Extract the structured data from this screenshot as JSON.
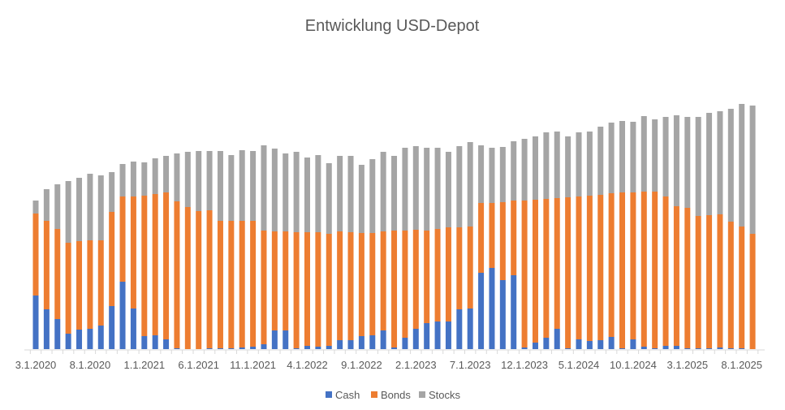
{
  "chart_data": {
    "type": "bar",
    "stacked": true,
    "title": "Entwicklung USD-Depot",
    "xlabel": "",
    "ylabel": "",
    "y_axis_visible": false,
    "grid": false,
    "legend_position": "bottom",
    "tick_labels": [
      "3.1.2020",
      "8.1.2020",
      "1.1.2021",
      "6.1.2021",
      "11.1.2021",
      "4.1.2022",
      "9.1.2022",
      "2.1.2023",
      "7.1.2023",
      "12.1.2023",
      "5.1.2024",
      "10.1.2024",
      "3.1.2025",
      "8.1.2025"
    ],
    "categories": [
      "3.1.2020",
      "4.1.2020",
      "5.1.2020",
      "6.1.2020",
      "7.1.2020",
      "8.1.2020",
      "9.1.2020",
      "10.1.2020",
      "11.1.2020",
      "12.1.2020",
      "1.1.2021",
      "2.1.2021",
      "3.1.2021",
      "4.1.2021",
      "5.1.2021",
      "6.1.2021",
      "7.1.2021",
      "8.1.2021",
      "9.1.2021",
      "10.1.2021",
      "11.1.2021",
      "12.1.2021",
      "1.1.2022",
      "2.1.2022",
      "3.1.2022",
      "4.1.2022",
      "5.1.2022",
      "6.1.2022",
      "7.1.2022",
      "8.1.2022",
      "9.1.2022",
      "10.1.2022",
      "11.1.2022",
      "12.1.2022",
      "1.1.2023",
      "2.1.2023",
      "3.1.2023",
      "4.1.2023",
      "5.1.2023",
      "6.1.2023",
      "7.1.2023",
      "8.1.2023",
      "9.1.2023",
      "10.1.2023",
      "11.1.2023",
      "12.1.2023",
      "1.1.2024",
      "2.1.2024",
      "3.1.2024",
      "4.1.2024",
      "5.1.2024",
      "6.1.2024",
      "7.1.2024",
      "8.1.2024",
      "9.1.2024",
      "10.1.2024",
      "11.1.2024",
      "12.1.2024",
      "1.1.2025",
      "2.1.2025",
      "3.1.2025",
      "4.1.2025",
      "5.1.2025",
      "6.1.2025",
      "7.1.2025",
      "8.1.2025",
      "9.1.2025"
    ],
    "series": [
      {
        "name": "Cash",
        "color": "#4472C4",
        "values": [
          66,
          49,
          37,
          19,
          24,
          25,
          29,
          53,
          83,
          50,
          16,
          17,
          12,
          1,
          0,
          0,
          1,
          1,
          1,
          2,
          3,
          6,
          23,
          23,
          1,
          4,
          3,
          4,
          11,
          11,
          16,
          17,
          23,
          2,
          14,
          25,
          32,
          34,
          34,
          49,
          50,
          94,
          100,
          85,
          91,
          2,
          8,
          14,
          25,
          1,
          12,
          10,
          11,
          15,
          1,
          12,
          3,
          1,
          4,
          4,
          1,
          1,
          1,
          2,
          1,
          1,
          0
        ]
      },
      {
        "name": "Bonds",
        "color": "#ED7D31",
        "values": [
          101,
          109,
          111,
          112,
          109,
          109,
          105,
          116,
          105,
          138,
          173,
          174,
          181,
          181,
          175,
          170,
          170,
          157,
          157,
          156,
          155,
          140,
          122,
          122,
          143,
          140,
          141,
          138,
          134,
          133,
          127,
          126,
          122,
          144,
          132,
          122,
          114,
          114,
          116,
          101,
          101,
          86,
          80,
          96,
          92,
          181,
          176,
          171,
          161,
          186,
          176,
          179,
          179,
          177,
          192,
          181,
          191,
          193,
          184,
          172,
          173,
          163,
          164,
          164,
          156,
          150,
          142
        ]
      },
      {
        "name": "Stocks",
        "color": "#A5A5A5",
        "values": [
          16,
          39,
          55,
          76,
          78,
          82,
          80,
          49,
          40,
          43,
          41,
          44,
          45,
          59,
          68,
          74,
          73,
          86,
          81,
          87,
          86,
          105,
          102,
          96,
          99,
          92,
          95,
          87,
          93,
          94,
          84,
          91,
          98,
          92,
          102,
          103,
          102,
          100,
          93,
          100,
          104,
          71,
          68,
          68,
          73,
          76,
          78,
          82,
          82,
          75,
          79,
          79,
          84,
          87,
          88,
          87,
          93,
          89,
          98,
          112,
          112,
          122,
          126,
          127,
          139,
          151,
          158
        ]
      }
    ]
  }
}
